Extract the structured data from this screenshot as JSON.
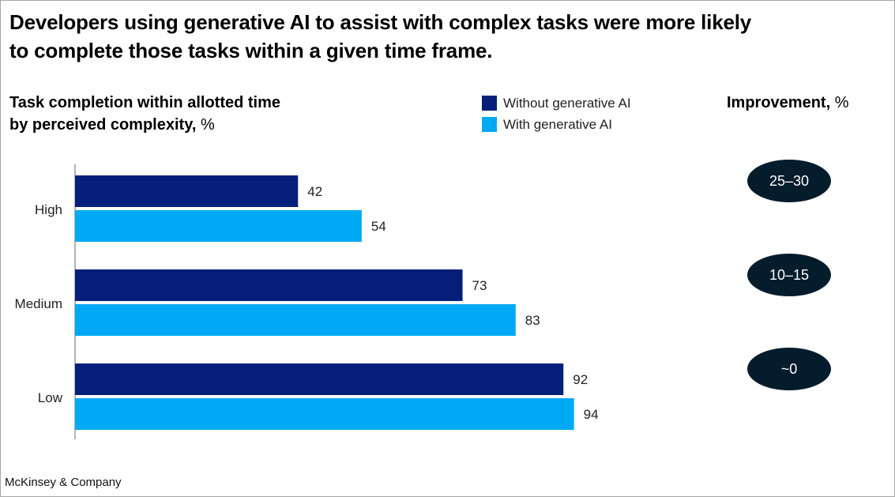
{
  "title": "Developers using generative AI to assist with complex tasks were more likely to complete those tasks within a given time frame.",
  "title_lines": [
    "Developers using generative AI to assist with complex tasks were more likely",
    "to complete those tasks within a given time frame."
  ],
  "subtitle_lines": [
    "Task completion within allotted time",
    "by perceived complexity,"
  ],
  "subtitle_unit": "%",
  "improvement_header": {
    "label": "Improvement,",
    "unit": "%"
  },
  "footer": "McKinsey & Company",
  "colors": {
    "without": "#051f7a",
    "with": "#00a9f4",
    "pill": "#051c2c",
    "axis": "#9a9a9a"
  },
  "chart_data": {
    "type": "bar",
    "orientation": "horizontal",
    "title": "Task completion within allotted time by perceived complexity, %",
    "categories": [
      "High",
      "Medium",
      "Low"
    ],
    "series": [
      {
        "name": "Without generative AI",
        "values": [
          42,
          73,
          92
        ]
      },
      {
        "name": "With generative AI",
        "values": [
          54,
          83,
          94
        ]
      }
    ],
    "xlim": [
      0,
      100
    ],
    "grid": false,
    "legend": "top-center",
    "data_labels": true,
    "annotations": {
      "label": "Improvement, %",
      "values": [
        "25–30",
        "10–15",
        "~0"
      ]
    }
  }
}
